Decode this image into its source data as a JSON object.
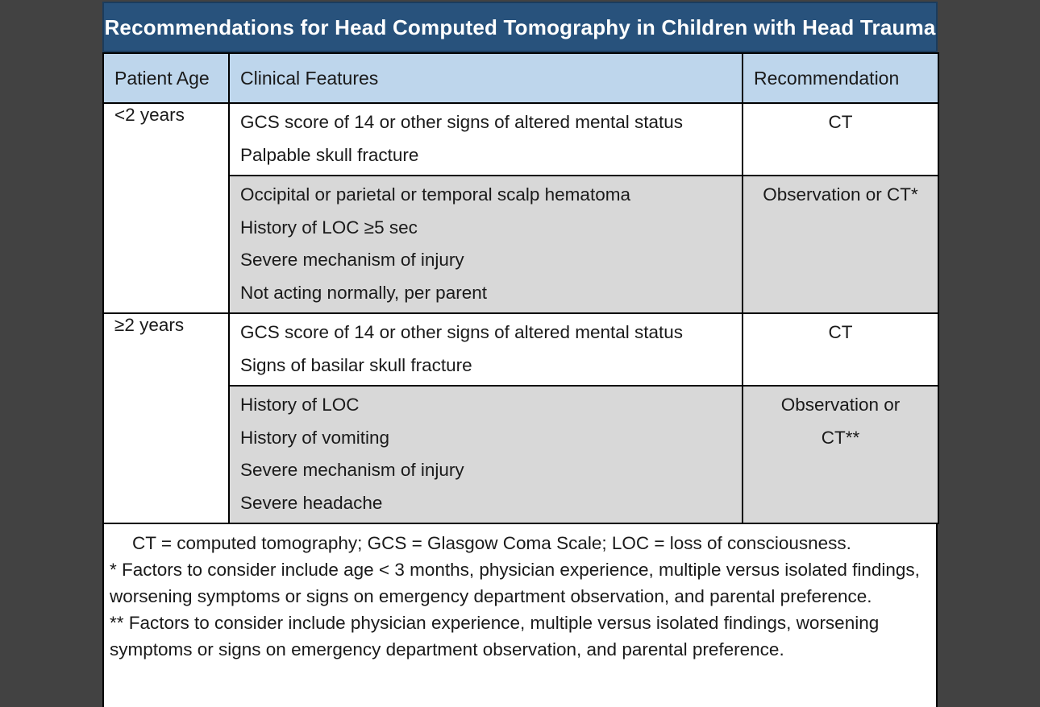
{
  "table": {
    "title": "Recommendations for Head Computed Tomography in Children with Head Trauma",
    "columns": [
      "Patient Age",
      "Clinical Features",
      "Recommendation"
    ],
    "groups": [
      {
        "age": "<2 years",
        "rows": [
          {
            "features": [
              "GCS score of 14 or other signs of altered mental status",
              "Palpable skull fracture"
            ],
            "recommendation": "CT",
            "shaded": false
          },
          {
            "features": [
              "Occipital or parietal or temporal scalp hematoma",
              "History of LOC ≥5 sec",
              "Severe mechanism of injury",
              "Not acting normally, per parent"
            ],
            "recommendation": "Observation or CT*",
            "shaded": true
          }
        ]
      },
      {
        "age": "≥2 years",
        "rows": [
          {
            "features": [
              "GCS score of 14 or other signs of altered mental status",
              "Signs of basilar skull fracture"
            ],
            "recommendation": "CT",
            "shaded": false
          },
          {
            "features": [
              "History of LOC",
              "History of vomiting",
              "Severe mechanism of injury",
              "Severe headache"
            ],
            "recommendation": "Observation or\nCT**",
            "shaded": true
          }
        ]
      }
    ],
    "footnotes": [
      "CT = computed tomography; GCS = Glasgow Coma Scale; LOC = loss of consciousness.",
      "* Factors to consider include age < 3 months, physician experience, multiple versus isolated findings, worsening symptoms or signs on emergency department observation, and parental preference.",
      "** Factors to consider include physician experience, multiple versus isolated findings, worsening symptoms or signs on emergency department observation, and parental preference."
    ]
  },
  "colors": {
    "page_background": "#424242",
    "title_background": "#28527C",
    "title_text": "#FFFFFF",
    "header_background": "#BED6EC",
    "shaded_row": "#D8D8D8",
    "body_text": "#1A1A1A",
    "border": "#000000"
  }
}
